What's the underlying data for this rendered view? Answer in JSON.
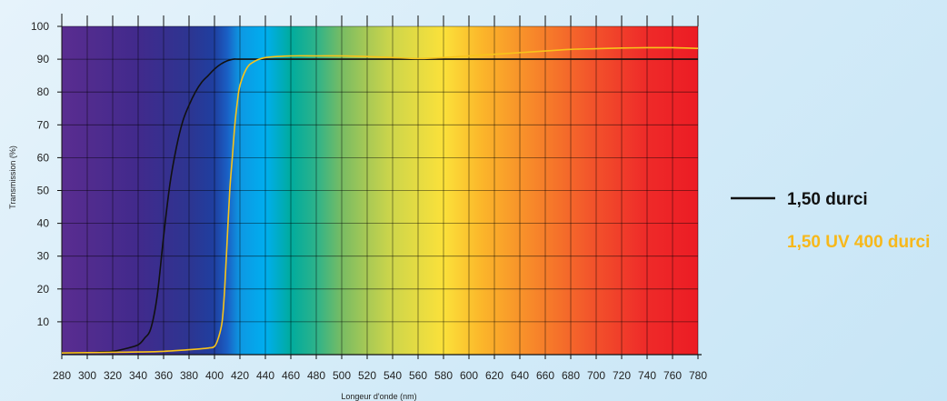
{
  "chart_data": {
    "type": "line",
    "title": "",
    "xlabel": "Longeur d'onde (nm)",
    "ylabel": "Transmission (%)",
    "xlim": [
      280,
      780
    ],
    "ylim": [
      0,
      100
    ],
    "x_ticks": [
      280,
      300,
      320,
      340,
      360,
      380,
      400,
      420,
      440,
      460,
      480,
      500,
      520,
      540,
      560,
      580,
      600,
      620,
      640,
      660,
      680,
      700,
      720,
      740,
      760,
      780
    ],
    "y_ticks": [
      10,
      20,
      30,
      40,
      50,
      60,
      70,
      80,
      90,
      100
    ],
    "grid": true,
    "legend_position": "right",
    "background": "visible spectrum gradient",
    "spectrum_stops": [
      {
        "nm": 280,
        "color": "#5a2d90"
      },
      {
        "nm": 340,
        "color": "#412a8c"
      },
      {
        "nm": 380,
        "color": "#2d3591"
      },
      {
        "nm": 400,
        "color": "#1f3fa0"
      },
      {
        "nm": 410,
        "color": "#1a5fc4"
      },
      {
        "nm": 420,
        "color": "#0d98e3"
      },
      {
        "nm": 440,
        "color": "#00aeef"
      },
      {
        "nm": 460,
        "color": "#00ab9e"
      },
      {
        "nm": 480,
        "color": "#2db38a"
      },
      {
        "nm": 500,
        "color": "#78bc63"
      },
      {
        "nm": 520,
        "color": "#a8c955"
      },
      {
        "nm": 540,
        "color": "#cfd64a"
      },
      {
        "nm": 580,
        "color": "#fbe13a"
      },
      {
        "nm": 610,
        "color": "#fbb62a"
      },
      {
        "nm": 650,
        "color": "#f7882a"
      },
      {
        "nm": 700,
        "color": "#f2502b"
      },
      {
        "nm": 740,
        "color": "#ee2a29"
      },
      {
        "nm": 780,
        "color": "#ec1c24"
      }
    ],
    "series": [
      {
        "name": "1,50 durci",
        "color": "#111111",
        "x": [
          280,
          300,
          310,
          320,
          330,
          340,
          345,
          350,
          355,
          360,
          365,
          370,
          375,
          380,
          385,
          390,
          395,
          400,
          405,
          410,
          415,
          420,
          440,
          480,
          520,
          560,
          600,
          640,
          680,
          720,
          760,
          780
        ],
        "y": [
          0.5,
          0.6,
          0.8,
          1.0,
          1.8,
          3.0,
          5.0,
          8.0,
          18,
          36,
          52,
          63,
          71,
          76,
          80,
          83,
          85,
          87,
          88.5,
          89.5,
          90,
          90,
          90,
          90,
          90,
          90,
          90,
          90,
          90,
          90,
          90,
          90
        ]
      },
      {
        "name": "1,50 UV 400 durci",
        "color": "#f7c31a",
        "x": [
          280,
          300,
          320,
          340,
          360,
          380,
          395,
          400,
          403,
          406,
          408,
          410,
          412,
          414,
          416,
          418,
          420,
          425,
          430,
          440,
          460,
          480,
          500,
          520,
          540,
          560,
          580,
          600,
          620,
          640,
          660,
          680,
          700,
          720,
          740,
          760,
          780
        ],
        "y": [
          0.5,
          0.6,
          0.7,
          0.8,
          1.0,
          1.5,
          2.0,
          2.5,
          5,
          10,
          20,
          35,
          50,
          60,
          70,
          77,
          82,
          87,
          89,
          90.5,
          91,
          91,
          91,
          90.8,
          90.5,
          90.2,
          90.5,
          91,
          91.5,
          92,
          92.5,
          93,
          93.2,
          93.4,
          93.5,
          93.5,
          93.3
        ]
      }
    ]
  },
  "legend": {
    "items": [
      {
        "label": "1,50 durci",
        "color": "#111111"
      },
      {
        "label": "1,50 UV 400 durci",
        "color": "#f7c31a"
      }
    ]
  }
}
